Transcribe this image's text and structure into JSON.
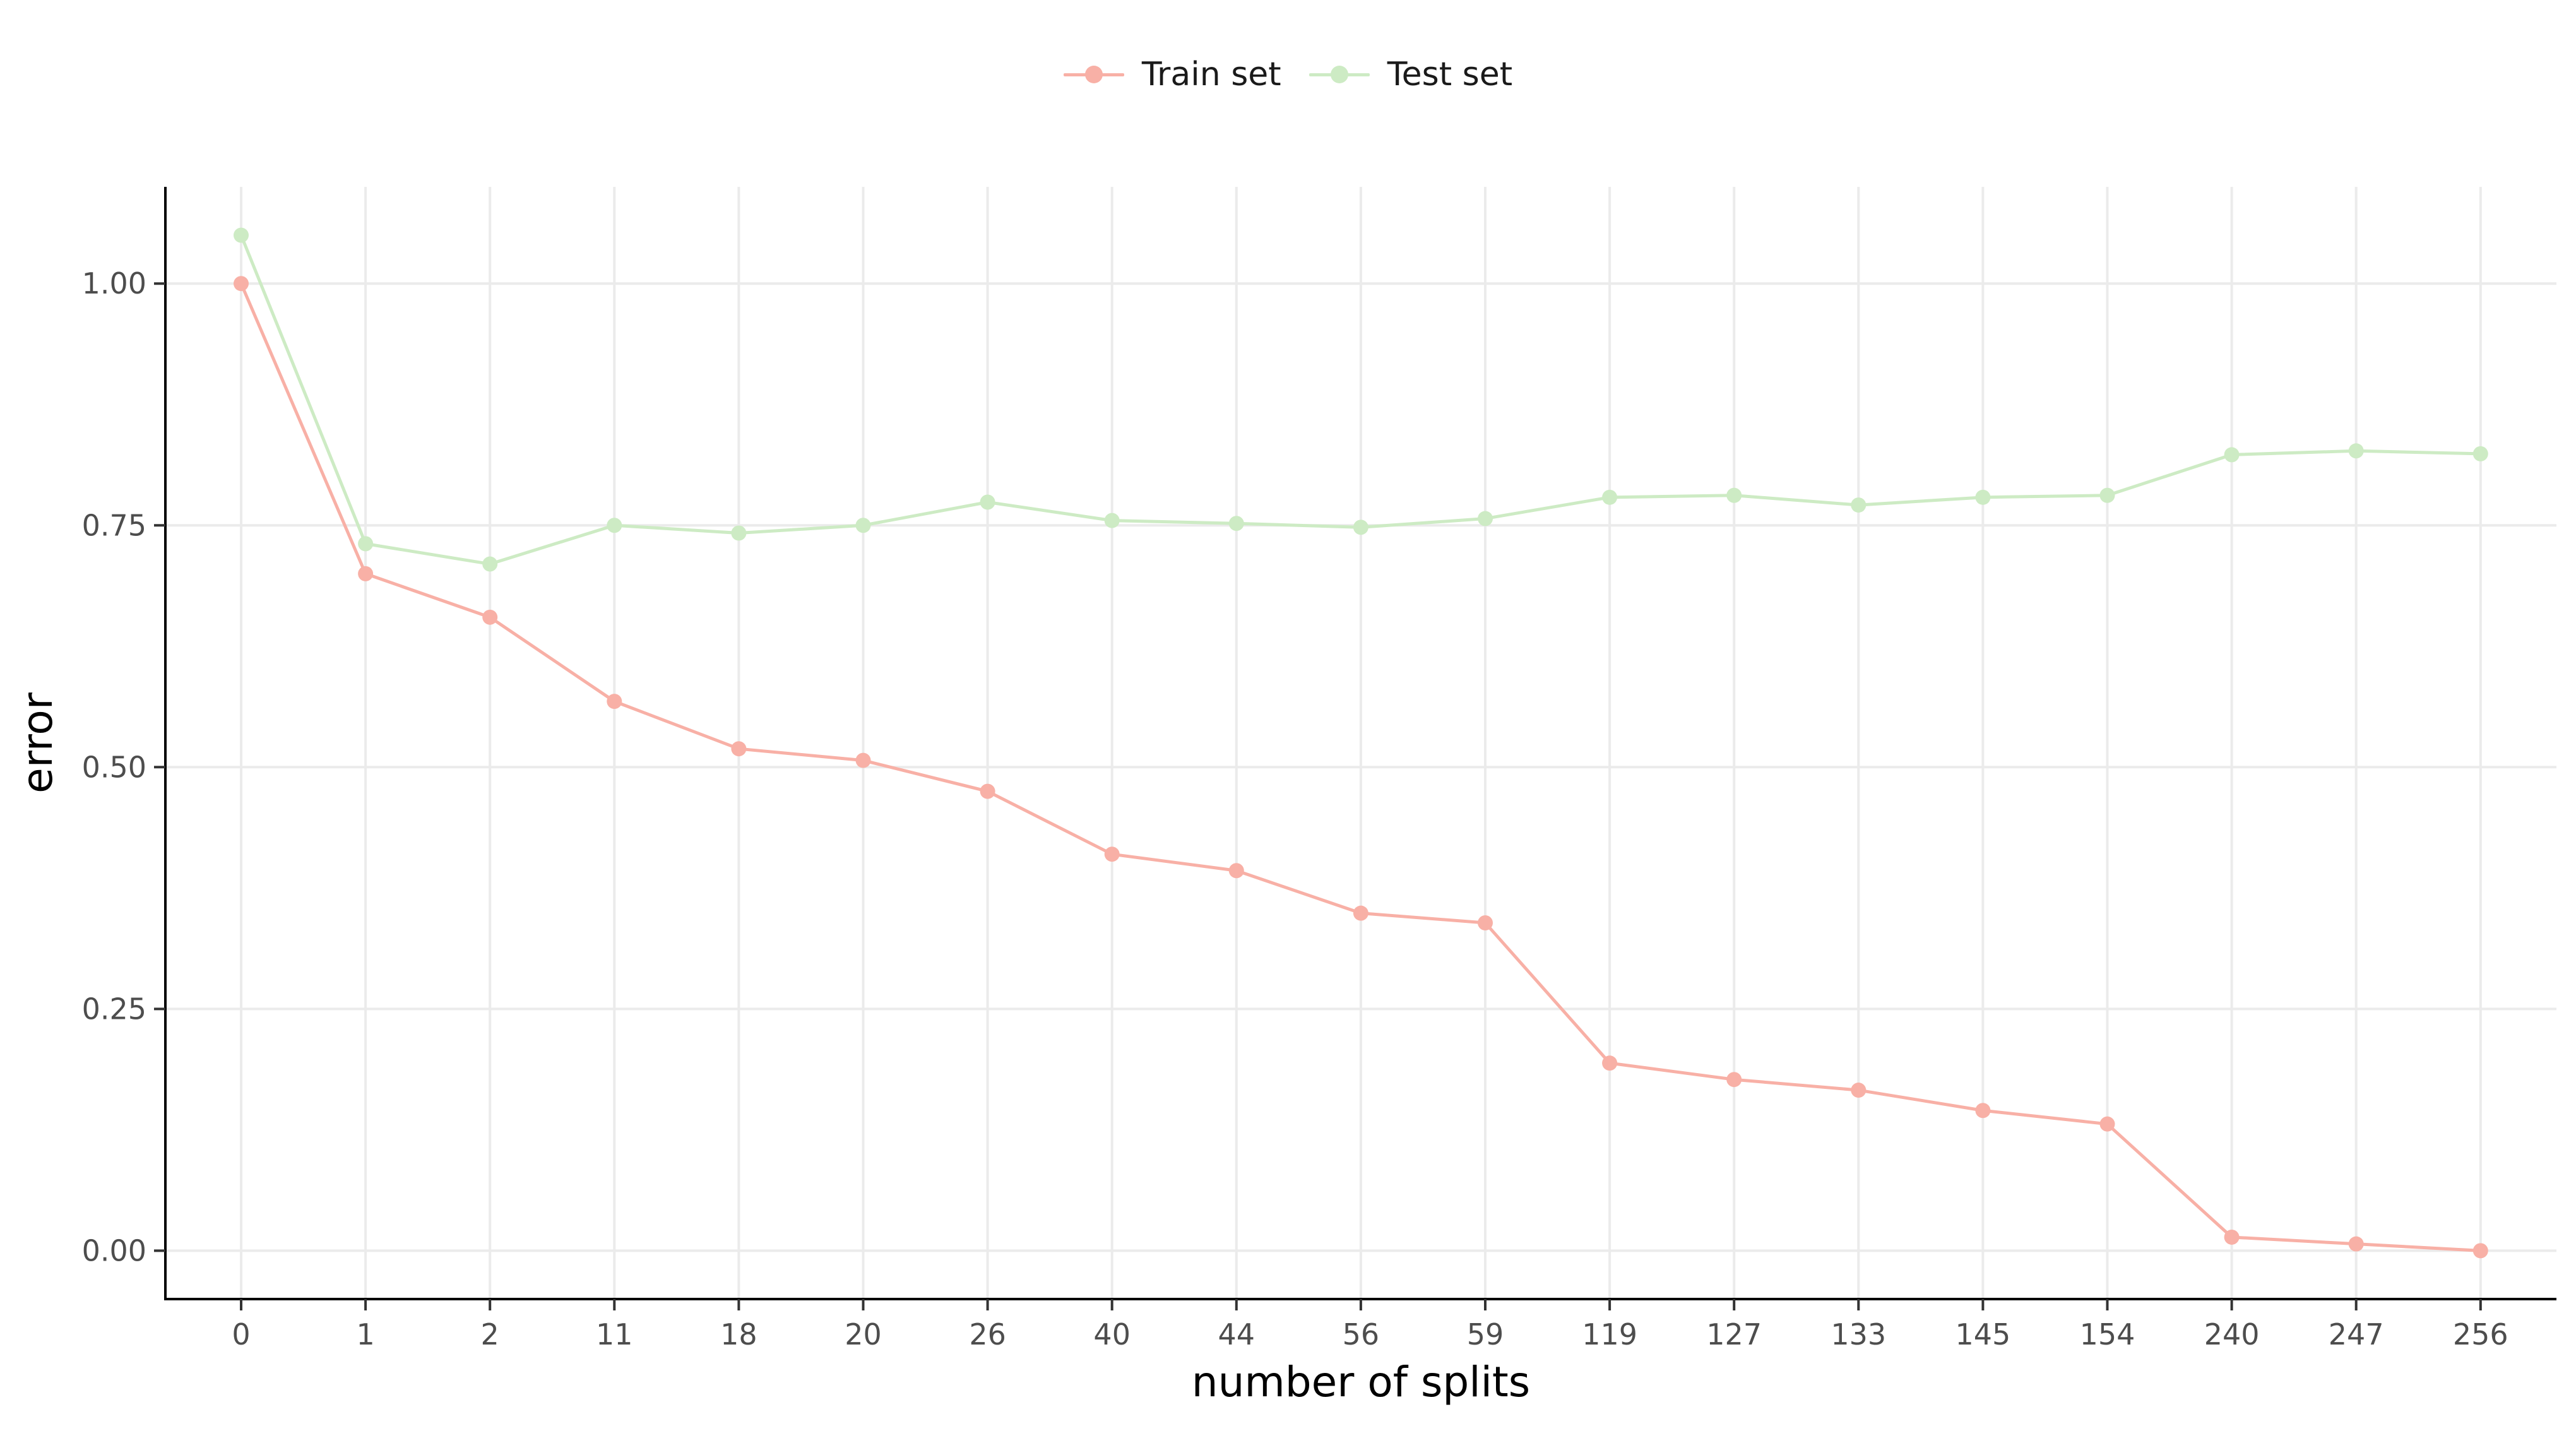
{
  "chart_data": {
    "type": "line",
    "title": "",
    "xlabel": "number of splits",
    "ylabel": "error",
    "categories": [
      "0",
      "1",
      "2",
      "11",
      "18",
      "20",
      "26",
      "40",
      "44",
      "56",
      "59",
      "119",
      "127",
      "133",
      "145",
      "154",
      "240",
      "247",
      "256"
    ],
    "ylim": [
      -0.05,
      1.1
    ],
    "yticks": [
      0.0,
      0.25,
      0.5,
      0.75,
      1.0
    ],
    "ytick_labels": [
      "0.00",
      "0.25",
      "0.50",
      "0.75",
      "1.00"
    ],
    "grid": true,
    "legend_position": "top",
    "series": [
      {
        "name": "Train set",
        "color": "#f8b0a6",
        "values": [
          1.0,
          0.7,
          0.655,
          0.568,
          0.519,
          0.507,
          0.475,
          0.41,
          0.393,
          0.349,
          0.339,
          0.194,
          0.177,
          0.166,
          0.145,
          0.131,
          0.014,
          0.007,
          0.0
        ]
      },
      {
        "name": "Test set",
        "color": "#cdebc4",
        "values": [
          1.05,
          0.731,
          0.71,
          0.75,
          0.742,
          0.75,
          0.774,
          0.755,
          0.752,
          0.748,
          0.757,
          0.779,
          0.781,
          0.771,
          0.779,
          0.781,
          0.823,
          0.827,
          0.824
        ]
      }
    ]
  }
}
